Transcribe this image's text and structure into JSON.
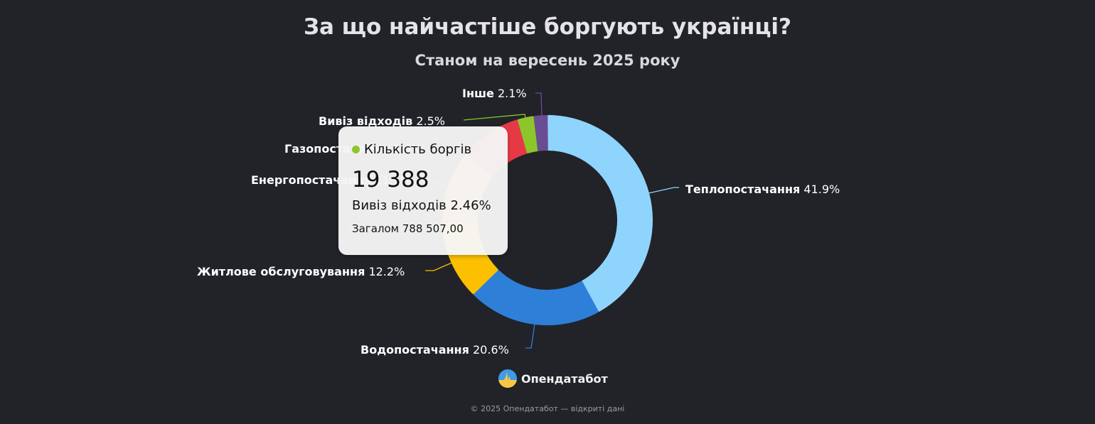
{
  "header": {
    "title": "За що найчастіше боргують українці?",
    "subtitle": "Станом на вересень 2025 року"
  },
  "chart_data": {
    "type": "pie",
    "variant": "donut",
    "title": "За що найчастіше боргують українці?",
    "subtitle": "Станом на вересень 2025 року",
    "series_name": "Кількість боргів",
    "total": "788 507,00",
    "categories": [
      "Теплопостачання",
      "Водопостачання",
      "Житлове обслуговування",
      "Енергопостачання",
      "Газопостачання",
      "Вивіз відходів",
      "Інше"
    ],
    "values_pct": [
      41.9,
      20.6,
      12.2,
      11.1,
      9.6,
      2.5,
      2.1
    ],
    "colors": [
      "#8fd4fd",
      "#2e7fd8",
      "#fcc000",
      "#f5902a",
      "#e63946",
      "#8cc62a",
      "#6a4c93"
    ],
    "labels": [
      {
        "name": "Теплопостачання",
        "pct": "41.9%"
      },
      {
        "name": "Водопостачання",
        "pct": "20.6%"
      },
      {
        "name": "Житлове обслуговування",
        "pct": "12.2%"
      },
      {
        "name": "Енергопостачання",
        "pct": "11.1%"
      },
      {
        "name": "Газопостачання",
        "pct": "9.6%"
      },
      {
        "name": "Вивіз відходів",
        "pct": "2.5%"
      },
      {
        "name": "Інше",
        "pct": "2.1%"
      }
    ],
    "legend": "none (data labels with leader lines)"
  },
  "tooltip": {
    "series": "Кількість боргів",
    "dot_color": "#8cc62a",
    "value": "19 388",
    "category_line": "Вивіз відходів 2.46%",
    "total_line": "Загалом 788 507,00"
  },
  "brand": {
    "name": "Опендатабот"
  },
  "footer": {
    "text": "© 2025 Опендатабот — відкриті дані"
  }
}
